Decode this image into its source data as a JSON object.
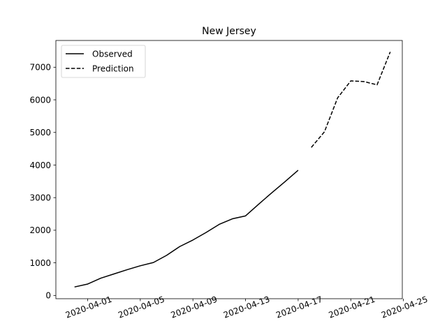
{
  "chart_data": {
    "type": "line",
    "title": "New Jersey",
    "xlabel": "",
    "ylabel": "",
    "xlim": [
      "2020-03-29T14:00",
      "2020-04-24T22:00"
    ],
    "ylim": [
      -100,
      7820
    ],
    "x_ticks": [
      "2020-04-01",
      "2020-04-05",
      "2020-04-09",
      "2020-04-13",
      "2020-04-17",
      "2020-04-21",
      "2020-04-25"
    ],
    "y_ticks": [
      0,
      1000,
      2000,
      3000,
      4000,
      5000,
      6000,
      7000
    ],
    "grid": false,
    "legend_position": "top-left",
    "series": [
      {
        "name": "Observed",
        "style": "solid",
        "color": "#000000",
        "points": [
          {
            "x": "2020-03-31",
            "y": 260
          },
          {
            "x": "2020-04-01",
            "y": 350
          },
          {
            "x": "2020-04-02",
            "y": 530
          },
          {
            "x": "2020-04-03",
            "y": 660
          },
          {
            "x": "2020-04-04",
            "y": 790
          },
          {
            "x": "2020-04-05",
            "y": 910
          },
          {
            "x": "2020-04-06",
            "y": 1010
          },
          {
            "x": "2020-04-07",
            "y": 1230
          },
          {
            "x": "2020-04-08",
            "y": 1500
          },
          {
            "x": "2020-04-09",
            "y": 1700
          },
          {
            "x": "2020-04-10",
            "y": 1930
          },
          {
            "x": "2020-04-11",
            "y": 2180
          },
          {
            "x": "2020-04-12",
            "y": 2350
          },
          {
            "x": "2020-04-13",
            "y": 2440
          },
          {
            "x": "2020-04-14",
            "y": 2800
          },
          {
            "x": "2020-04-15",
            "y": 3150
          },
          {
            "x": "2020-04-16",
            "y": 3490
          },
          {
            "x": "2020-04-17",
            "y": 3840
          }
        ]
      },
      {
        "name": "Prediction",
        "style": "dashed",
        "color": "#000000",
        "points": [
          {
            "x": "2020-04-18",
            "y": 4540
          },
          {
            "x": "2020-04-19",
            "y": 5020
          },
          {
            "x": "2020-04-20",
            "y": 6060
          },
          {
            "x": "2020-04-21",
            "y": 6580
          },
          {
            "x": "2020-04-22",
            "y": 6560
          },
          {
            "x": "2020-04-23",
            "y": 6460
          },
          {
            "x": "2020-04-24",
            "y": 7470
          }
        ]
      }
    ]
  }
}
